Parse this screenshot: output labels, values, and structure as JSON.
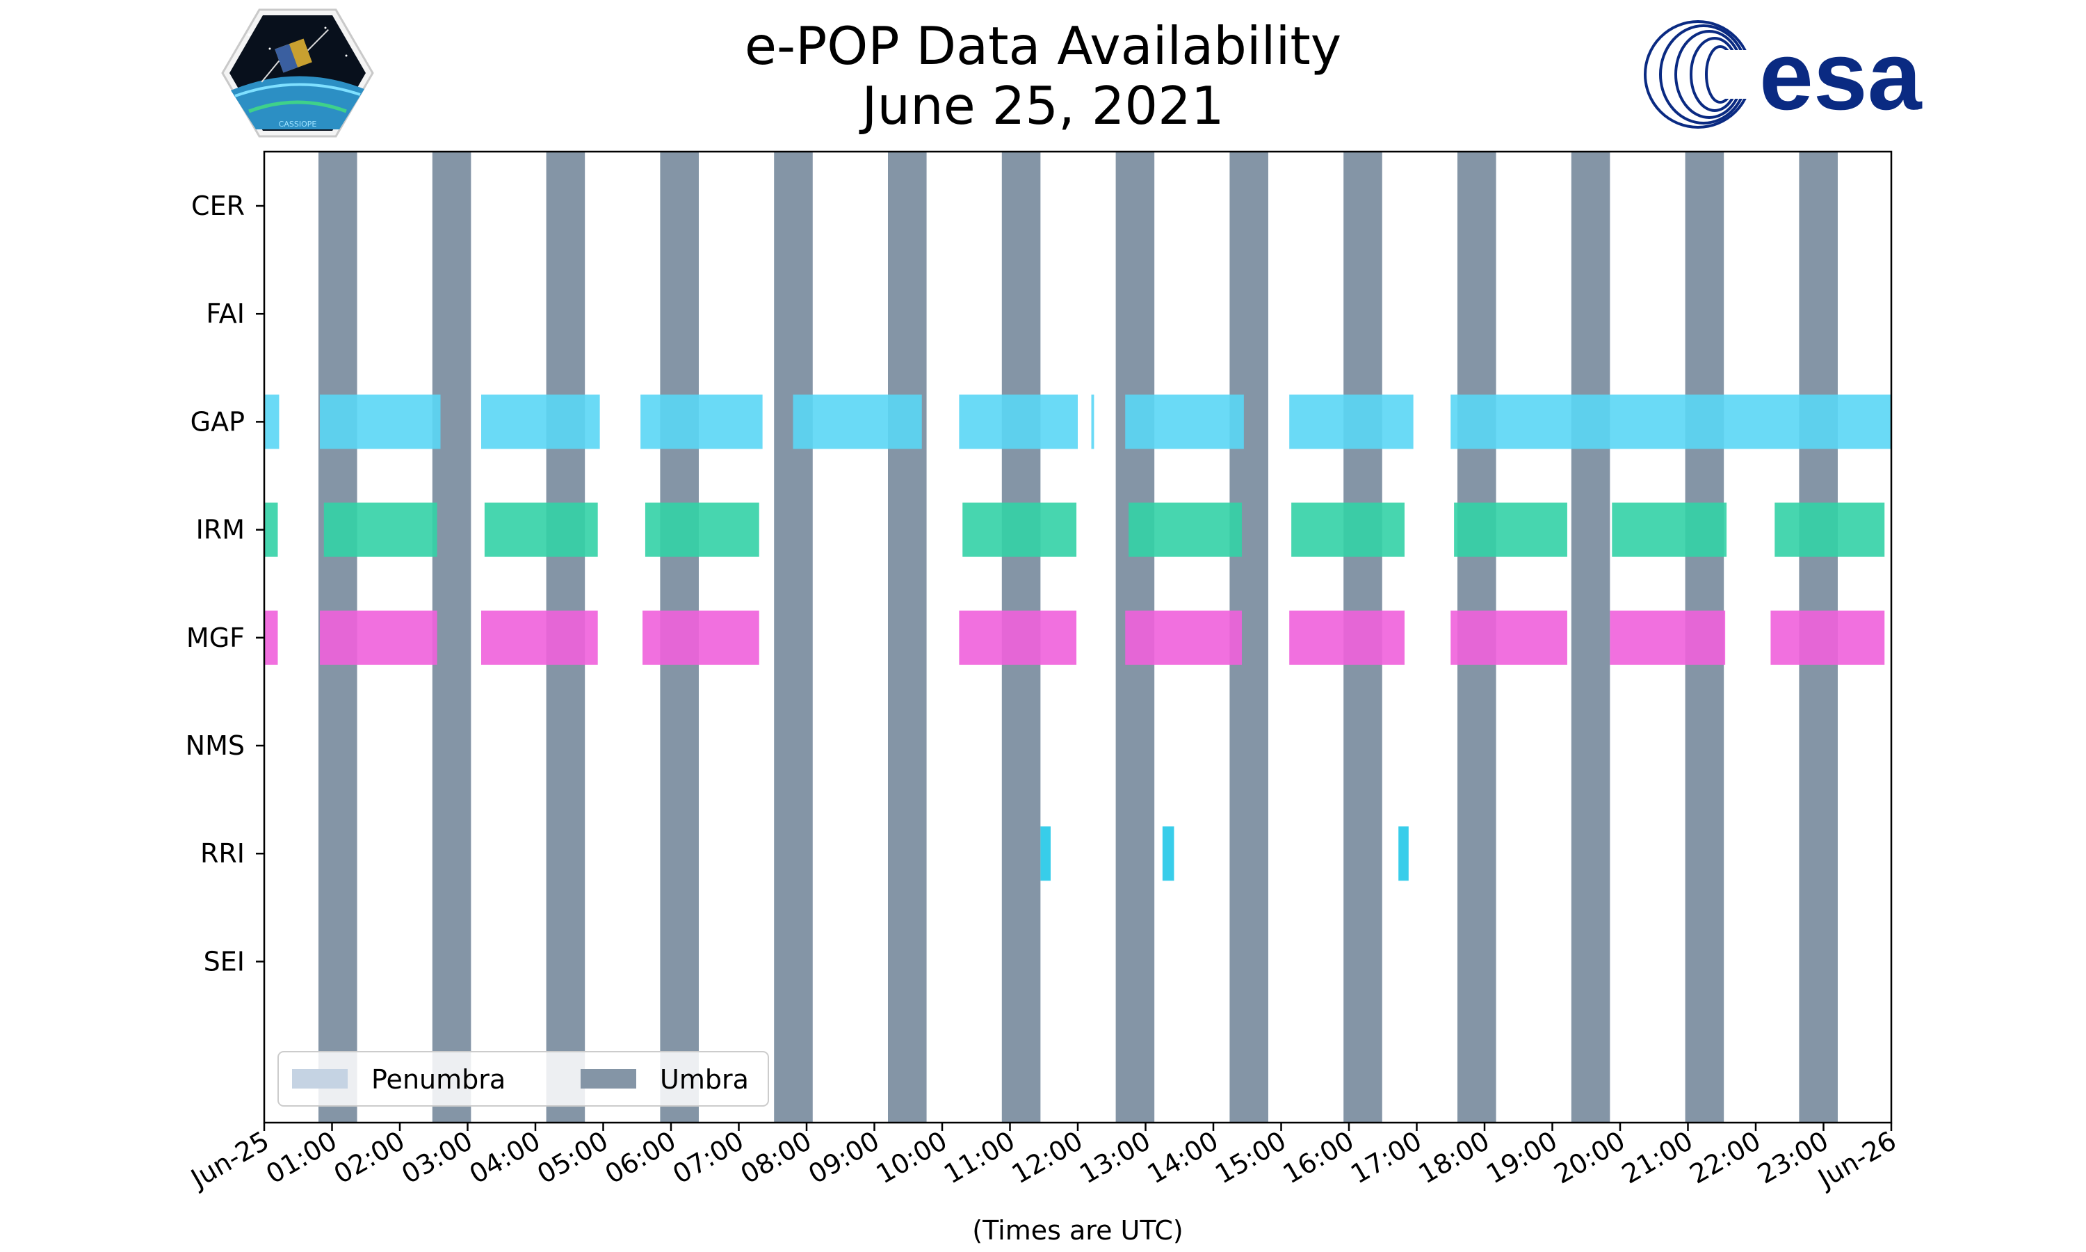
{
  "header": {
    "title_line1": "e-POP Data Availability",
    "title_line2": "June 25, 2021",
    "left_logo_text": "CASSIOPE",
    "right_logo_text": "esa"
  },
  "colors": {
    "umbra": "#8495a6",
    "penumbra": "#c5d3e3",
    "GAP": "#5ad6f5",
    "IRM": "#33d2a6",
    "MGF": "#f060dc",
    "RRI": "#22c8e8",
    "esa_blue": "#0a2a82"
  },
  "chart_data": {
    "type": "timeline",
    "xlabel": "(Times are UTC)",
    "xlim": [
      0,
      24
    ],
    "x_units": "hours UTC on 2021-06-25",
    "x_ticks": [
      {
        "value": 0,
        "label": "Jun-25"
      },
      {
        "value": 1,
        "label": "01:00"
      },
      {
        "value": 2,
        "label": "02:00"
      },
      {
        "value": 3,
        "label": "03:00"
      },
      {
        "value": 4,
        "label": "04:00"
      },
      {
        "value": 5,
        "label": "05:00"
      },
      {
        "value": 6,
        "label": "06:00"
      },
      {
        "value": 7,
        "label": "07:00"
      },
      {
        "value": 8,
        "label": "08:00"
      },
      {
        "value": 9,
        "label": "09:00"
      },
      {
        "value": 10,
        "label": "10:00"
      },
      {
        "value": 11,
        "label": "11:00"
      },
      {
        "value": 12,
        "label": "12:00"
      },
      {
        "value": 13,
        "label": "13:00"
      },
      {
        "value": 14,
        "label": "14:00"
      },
      {
        "value": 15,
        "label": "15:00"
      },
      {
        "value": 16,
        "label": "16:00"
      },
      {
        "value": 17,
        "label": "17:00"
      },
      {
        "value": 18,
        "label": "18:00"
      },
      {
        "value": 19,
        "label": "19:00"
      },
      {
        "value": 20,
        "label": "20:00"
      },
      {
        "value": 21,
        "label": "21:00"
      },
      {
        "value": 22,
        "label": "22:00"
      },
      {
        "value": 23,
        "label": "23:00"
      },
      {
        "value": 24,
        "label": "Jun-26"
      }
    ],
    "instruments": [
      "CER",
      "FAI",
      "GAP",
      "IRM",
      "MGF",
      "NMS",
      "RRI",
      "SEI"
    ],
    "umbra_intervals": [
      [
        0.8,
        1.37
      ],
      [
        2.48,
        3.05
      ],
      [
        4.16,
        4.73
      ],
      [
        5.84,
        6.41
      ],
      [
        7.52,
        8.09
      ],
      [
        9.2,
        9.77
      ],
      [
        10.88,
        11.45
      ],
      [
        12.56,
        13.13
      ],
      [
        14.24,
        14.81
      ],
      [
        15.92,
        16.49
      ],
      [
        17.6,
        18.17
      ],
      [
        19.28,
        19.85
      ],
      [
        20.96,
        21.53
      ],
      [
        22.64,
        23.21
      ]
    ],
    "penumbra_intervals": [],
    "data_intervals": {
      "CER": [],
      "FAI": [],
      "GAP": [
        [
          0,
          0.22
        ],
        [
          0.82,
          2.6
        ],
        [
          3.2,
          4.95
        ],
        [
          5.55,
          7.35
        ],
        [
          7.8,
          9.7
        ],
        [
          10.25,
          12.0
        ],
        [
          12.2,
          12.24
        ],
        [
          12.7,
          14.45
        ],
        [
          15.12,
          16.95
        ],
        [
          17.5,
          24
        ]
      ],
      "IRM": [
        [
          0,
          0.2
        ],
        [
          0.88,
          2.55
        ],
        [
          3.25,
          4.92
        ],
        [
          5.62,
          7.3
        ],
        [
          10.3,
          11.98
        ],
        [
          12.75,
          14.42
        ],
        [
          15.15,
          16.82
        ],
        [
          17.55,
          19.22
        ],
        [
          19.88,
          21.57
        ],
        [
          22.28,
          23.9
        ]
      ],
      "MGF": [
        [
          0,
          0.2
        ],
        [
          0.82,
          2.55
        ],
        [
          3.2,
          4.92
        ],
        [
          5.58,
          7.3
        ],
        [
          10.25,
          11.98
        ],
        [
          12.7,
          14.42
        ],
        [
          15.12,
          16.82
        ],
        [
          17.5,
          19.22
        ],
        [
          19.85,
          21.55
        ],
        [
          22.22,
          23.9
        ]
      ],
      "NMS": [],
      "RRI": [
        [
          11.45,
          11.6
        ],
        [
          13.25,
          13.42
        ],
        [
          16.73,
          16.88
        ]
      ],
      "SEI": []
    },
    "legend": {
      "placement": "lower-left",
      "entries": [
        {
          "label": "Penumbra",
          "color_key": "penumbra"
        },
        {
          "label": "Umbra",
          "color_key": "umbra"
        }
      ]
    }
  }
}
